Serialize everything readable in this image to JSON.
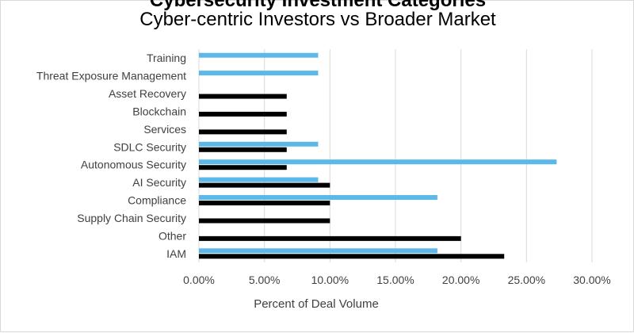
{
  "chart_data": {
    "type": "bar",
    "orientation": "horizontal",
    "title": "Cybersecurity Investment Categories",
    "subtitle": "Cyber-centric Investors vs Broader Market",
    "xlabel": "Percent of Deal Volume",
    "ylabel": "",
    "xlim": [
      0,
      0.3
    ],
    "x_ticks": [
      "0.00%",
      "5.00%",
      "10.00%",
      "15.00%",
      "20.00%",
      "25.00%",
      "30.00%"
    ],
    "x_tick_values": [
      0,
      0.05,
      0.1,
      0.15,
      0.2,
      0.25,
      0.3
    ],
    "grid": "vertical",
    "categories": [
      "IAM",
      "Other",
      "Supply Chain Security",
      "Compliance",
      "AI Security",
      "Autonomous Security",
      "SDLC Security",
      "Services",
      "Blockchain",
      "Asset Recovery",
      "Threat Exposure Management",
      "Training"
    ],
    "series": [
      {
        "name": "Cyber-centric Investors",
        "color": "#000000",
        "values": [
          0.233,
          0.2,
          0.1,
          0.1,
          0.1,
          0.067,
          0.067,
          0.067,
          0.067,
          0.067,
          0,
          0
        ]
      },
      {
        "name": "Broader Market",
        "color": "#5bb8e8",
        "values": [
          0.182,
          0,
          0,
          0.182,
          0.091,
          0.273,
          0.091,
          0,
          0,
          0,
          0.091,
          0.091
        ]
      }
    ]
  }
}
